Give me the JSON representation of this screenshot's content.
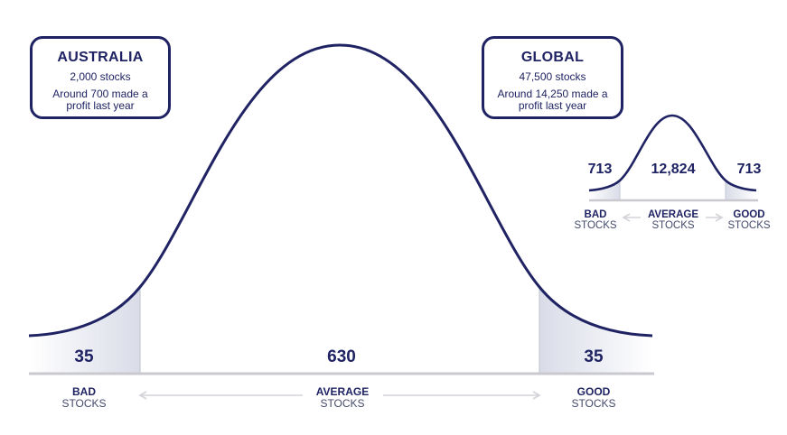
{
  "australia": {
    "title": "AUSTRALIA",
    "stocks": "2,000 stocks",
    "note": "Around 700 made a profit last year",
    "bad_value": "35",
    "average_value": "630",
    "good_value": "35",
    "bad_label_1": "BAD",
    "bad_label_2": "STOCKS",
    "average_label_1": "AVERAGE",
    "average_label_2": "STOCKS",
    "good_label_1": "GOOD",
    "good_label_2": "STOCKS"
  },
  "global": {
    "title": "GLOBAL",
    "stocks": "47,500 stocks",
    "note": "Around 14,250 made a profit last year",
    "bad_value": "713",
    "average_value": "12,824",
    "good_value": "713",
    "bad_label_1": "BAD",
    "bad_label_2": "STOCKS",
    "average_label_1": "AVERAGE",
    "average_label_2": "STOCKS",
    "good_label_1": "GOOD",
    "good_label_2": "STOCKS"
  },
  "colors": {
    "navy": "#1f2363",
    "tail_shade": "#d9dce8",
    "baseline": "#c9c9cf",
    "arrow": "#d3d3d8"
  }
}
